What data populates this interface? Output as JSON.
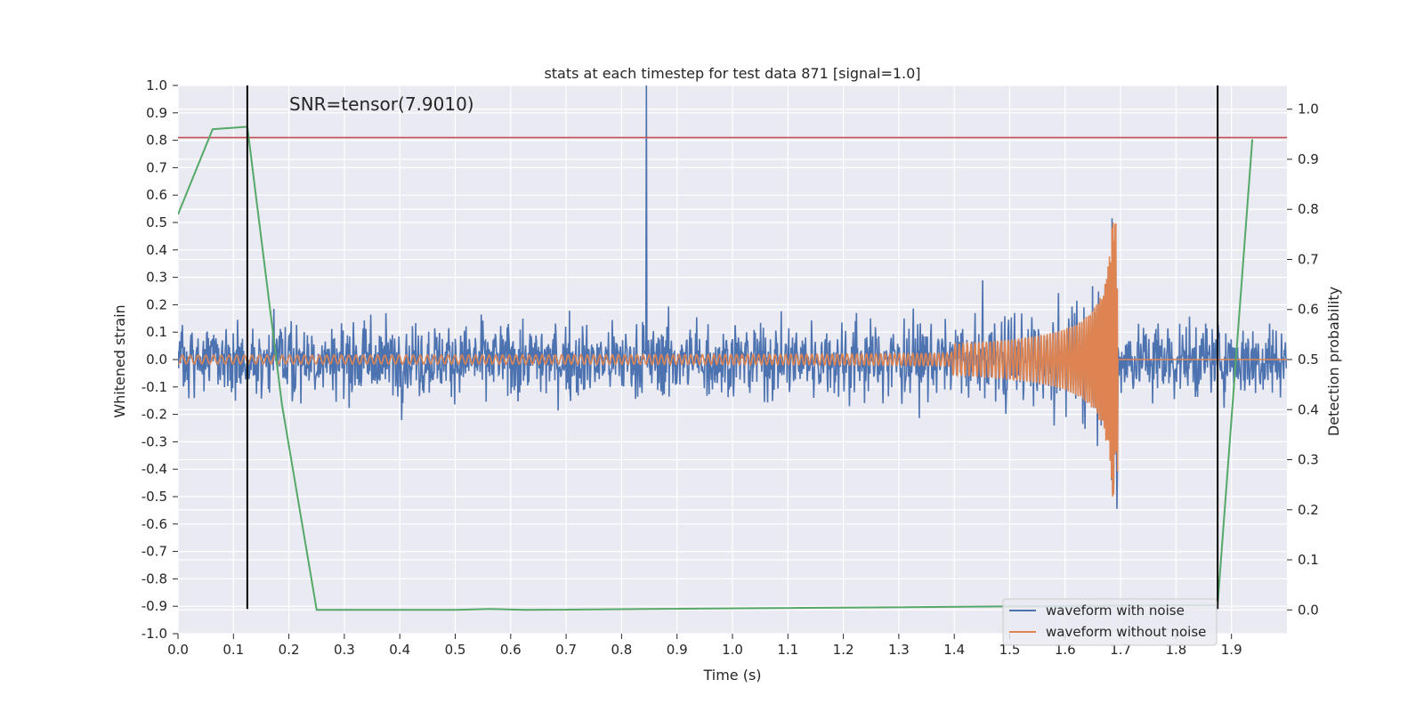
{
  "chart_data": {
    "type": "line",
    "title": "stats at each timestep for test data 871 [signal=1.0]",
    "annotation": "SNR=tensor(7.9010)",
    "xlabel": "Time (s)",
    "ylabel": "Whitened strain",
    "ylabel_right": "Detection probability",
    "xlim": [
      0.0,
      2.0
    ],
    "ylim": [
      -1.0,
      1.0
    ],
    "ylim_right": [
      -0.0475,
      1.0475
    ],
    "x_ticks": [
      "0.0",
      "0.1",
      "0.2",
      "0.3",
      "0.4",
      "0.5",
      "0.6",
      "0.7",
      "0.8",
      "0.9",
      "1.0",
      "1.1",
      "1.2",
      "1.3",
      "1.4",
      "1.5",
      "1.6",
      "1.7",
      "1.8",
      "1.9"
    ],
    "y_ticks": [
      "-1.0",
      "-0.9",
      "-0.8",
      "-0.7",
      "-0.6",
      "-0.5",
      "-0.4",
      "-0.3",
      "-0.2",
      "-0.1",
      "0.0",
      "0.1",
      "0.2",
      "0.3",
      "0.4",
      "0.5",
      "0.6",
      "0.7",
      "0.8",
      "0.9",
      "1.0"
    ],
    "y_ticks_right": [
      "0.0",
      "0.1",
      "0.2",
      "0.3",
      "0.4",
      "0.5",
      "0.6",
      "0.7",
      "0.8",
      "0.9",
      "1.0"
    ],
    "grid": true,
    "legend_position": "lower-right",
    "series": [
      {
        "name": "waveform with noise",
        "axis": "left",
        "color": "#4c72b0",
        "style": "dense noise, amplitude mostly within ±0.6, peaks near 1.0 at 0.845 s",
        "min": -0.91,
        "max": 1.0,
        "samples": 2048,
        "seed": 871
      },
      {
        "name": "waveform without noise",
        "axis": "left",
        "color": "#dd8452",
        "style": "chirp ending at ~1.695 s, peak amplitude ~0.5, zero afterwards",
        "merger_time": 1.695,
        "peak_amplitude": 0.5
      },
      {
        "name": "detection probability",
        "axis": "right",
        "color": "#55a868",
        "in_legend": false,
        "x": [
          0.0,
          0.0625,
          0.125,
          0.1875,
          0.25,
          0.5,
          0.5625,
          0.625,
          1.875,
          1.9375
        ],
        "y": [
          0.79,
          0.96,
          0.965,
          0.41,
          0.0,
          0.0,
          0.002,
          0.0,
          0.01,
          0.94
        ]
      }
    ],
    "threshold": {
      "value": 0.81,
      "axis": "left",
      "color": "#c44e52"
    },
    "vertical_markers": [
      {
        "x": 0.125,
        "y_from": -0.91,
        "y_to": 1.0,
        "color": "#000000"
      },
      {
        "x": 1.875,
        "y_from": -0.91,
        "y_to": 1.0,
        "color": "#000000"
      }
    ]
  }
}
